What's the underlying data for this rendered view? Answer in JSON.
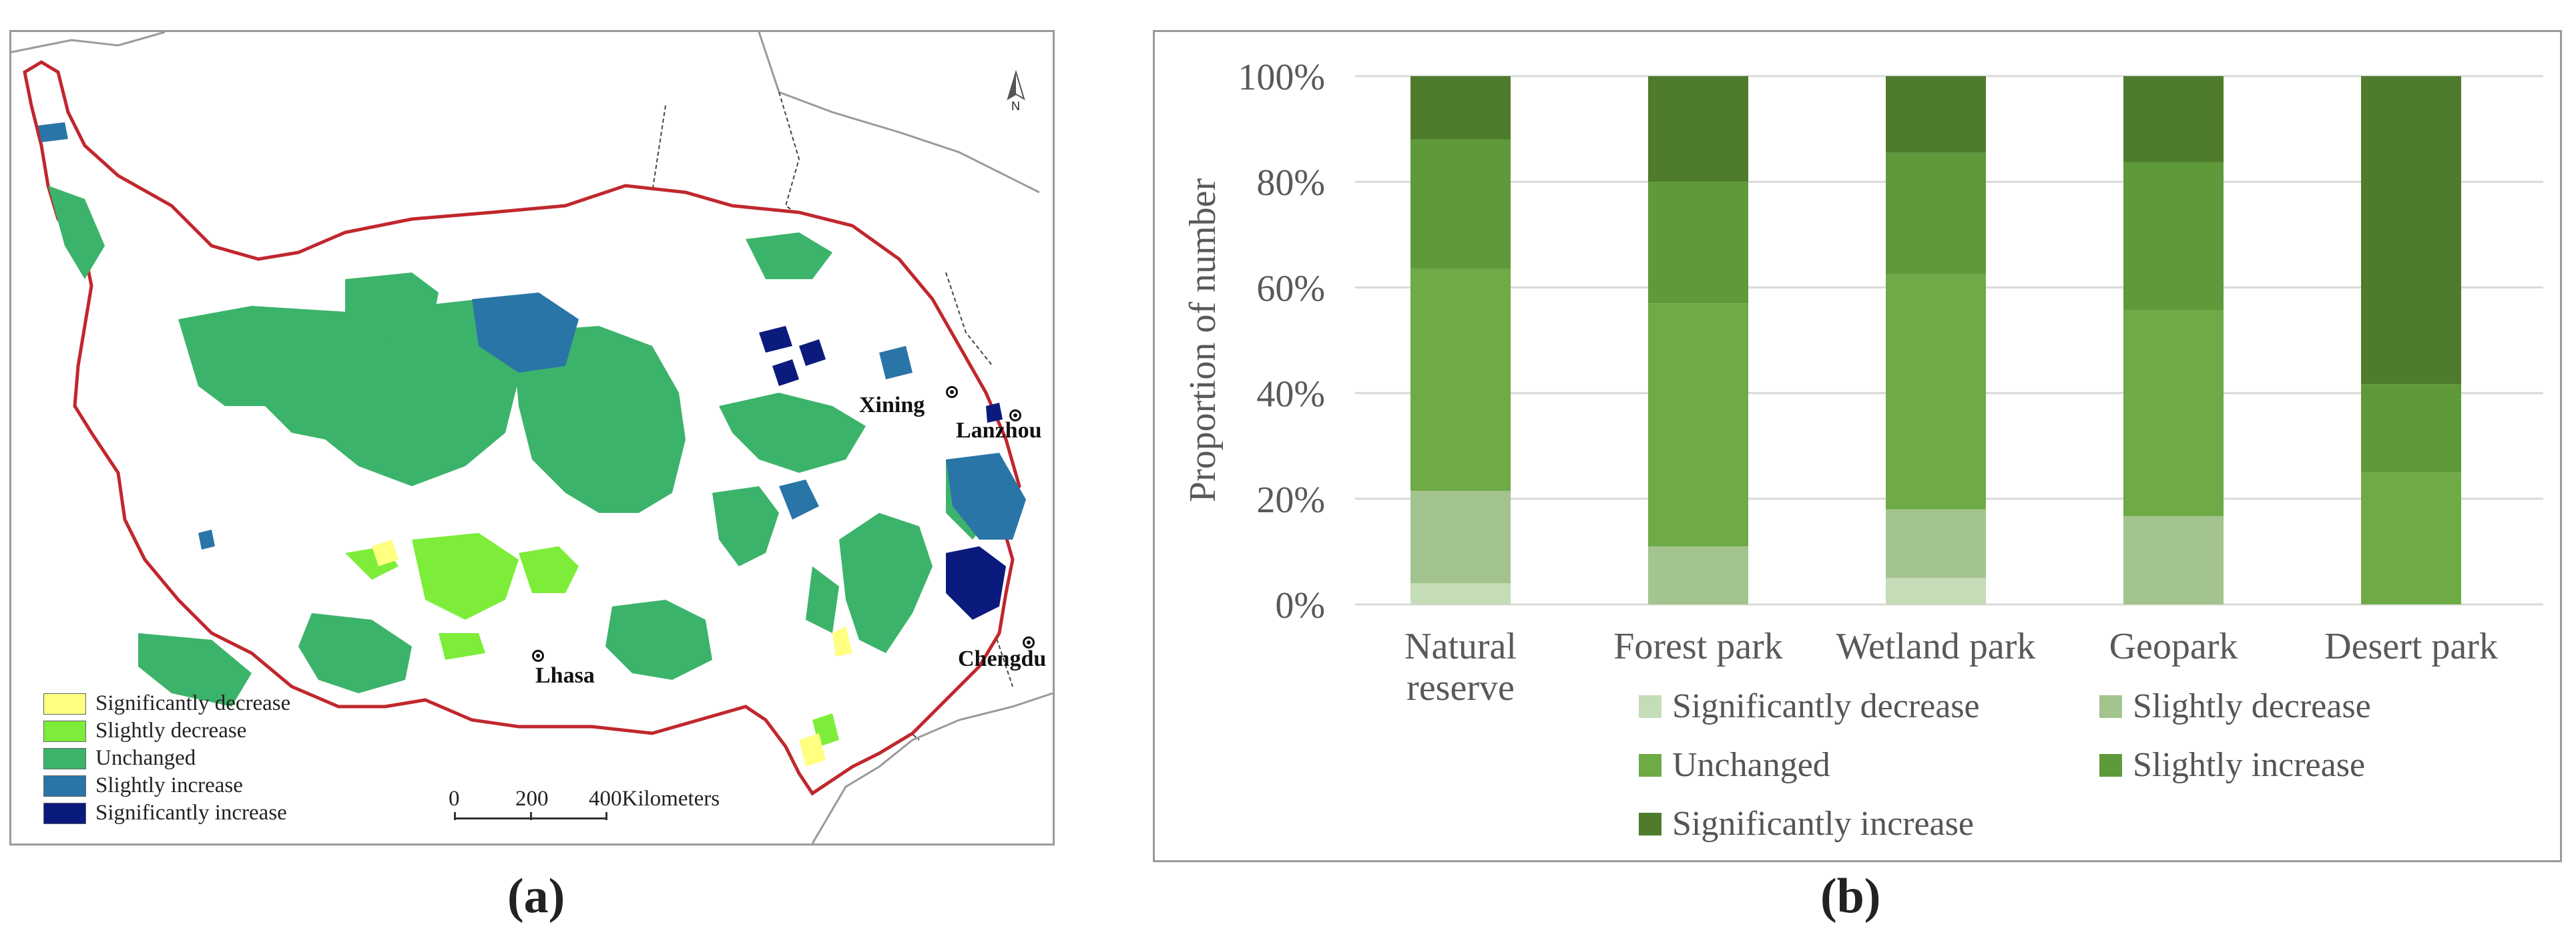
{
  "panel_a": {
    "caption": "(a)",
    "legend": [
      {
        "label": "Significantly decrease",
        "color": "#ffff80"
      },
      {
        "label": "Slightly decrease",
        "color": "#7ded3a"
      },
      {
        "label": "Unchanged",
        "color": "#3cb36a"
      },
      {
        "label": "Slightly increase",
        "color": "#2a75a8"
      },
      {
        "label": "Significantly increase",
        "color": "#0b1a7d"
      }
    ],
    "cities": [
      "Xining",
      "Lanzhou",
      "Chengdu",
      "Lhasa"
    ],
    "scalebar": {
      "tick_labels": [
        "0",
        "200",
        "400Kilometers"
      ]
    },
    "north_label": "N",
    "border_color": "#c0272d"
  },
  "panel_b": {
    "caption": "(b)"
  },
  "chart_data": {
    "type": "bar",
    "stacked": true,
    "percent": true,
    "categories": [
      "Natural reserve",
      "Forest park",
      "Wetland park",
      "Geopark",
      "Desert park"
    ],
    "category_lines": [
      [
        "Natural",
        "reserve"
      ],
      [
        "Forest park"
      ],
      [
        "Wetland park"
      ],
      [
        "Geopark"
      ],
      [
        "Desert park"
      ]
    ],
    "series": [
      {
        "name": "Significantly decrease",
        "color": "#c5dcb8",
        "values": [
          4,
          0,
          5,
          0,
          0
        ]
      },
      {
        "name": "Slightly decrease",
        "color": "#a3c48e",
        "values": [
          17.5,
          11,
          13,
          16.7,
          0
        ]
      },
      {
        "name": "Unchanged",
        "color": "#6eaa45",
        "values": [
          42,
          46,
          44.5,
          39,
          25
        ]
      },
      {
        "name": "Slightly increase",
        "color": "#5f9a3a",
        "values": [
          24.5,
          23,
          23,
          28,
          16.7
        ]
      },
      {
        "name": "Significantly increase",
        "color": "#4f7c2c",
        "values": [
          12,
          20,
          14.5,
          16.3,
          58.3
        ]
      }
    ],
    "ylabel": "Proportion of number",
    "xlabel": "",
    "ylim": [
      0,
      100
    ],
    "yticks": [
      "0%",
      "20%",
      "40%",
      "60%",
      "80%",
      "100%"
    ],
    "grid": true,
    "legend_position": "bottom"
  }
}
